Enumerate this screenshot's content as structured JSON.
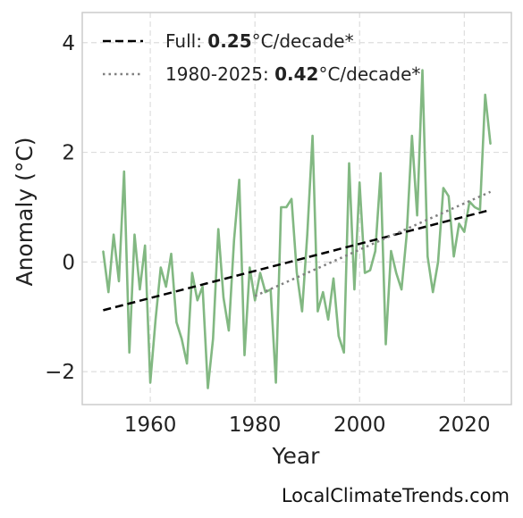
{
  "chart_data": {
    "type": "line",
    "xlabel": "Year",
    "ylabel": "Anomaly (°C)",
    "xlim": [
      1947,
      2029
    ],
    "ylim": [
      -2.6,
      4.55
    ],
    "xticks": [
      1960,
      1980,
      2000,
      2020
    ],
    "yticks": [
      -2,
      0,
      2,
      4
    ],
    "ytick_labels": [
      "−2",
      "0",
      "2",
      "4"
    ],
    "grid": true,
    "legend_position": "top-left",
    "colors": {
      "series": "#82b882",
      "full_trend": "#000000",
      "recent_trend": "#808080"
    },
    "series": [
      {
        "x": [
          1951,
          1952,
          1953,
          1954,
          1955,
          1956,
          1957,
          1958,
          1959,
          1960,
          1961,
          1962,
          1963,
          1964,
          1965,
          1966,
          1967,
          1968,
          1969,
          1970,
          1971,
          1972,
          1973,
          1974,
          1975,
          1976,
          1977,
          1978,
          1979,
          1980,
          1981,
          1982,
          1983,
          1984,
          1985,
          1986,
          1987,
          1988,
          1989,
          1990,
          1991,
          1992,
          1993,
          1994,
          1995,
          1996,
          1997,
          1998,
          1999,
          2000,
          2001,
          2002,
          2003,
          2004,
          2005,
          2006,
          2007,
          2008,
          2009,
          2010,
          2011,
          2012,
          2013,
          2014,
          2015,
          2016,
          2017,
          2018,
          2019,
          2020,
          2021,
          2022,
          2023,
          2024,
          2025
        ],
        "y": [
          0.2,
          -0.55,
          0.5,
          -0.35,
          1.65,
          -1.65,
          0.5,
          -0.5,
          0.3,
          -2.2,
          -1.05,
          -0.1,
          -0.45,
          0.15,
          -1.1,
          -1.4,
          -1.85,
          -0.2,
          -0.7,
          -0.45,
          -2.3,
          -1.4,
          0.6,
          -0.65,
          -1.25,
          0.4,
          1.5,
          -1.7,
          -0.1,
          -0.7,
          -0.2,
          -0.55,
          -0.5,
          -2.2,
          1.0,
          1.0,
          1.15,
          -0.2,
          -0.9,
          0.5,
          2.3,
          -0.9,
          -0.55,
          -1.05,
          -0.3,
          -1.35,
          -1.65,
          1.8,
          -0.5,
          1.45,
          -0.2,
          -0.15,
          0.2,
          1.62,
          -1.5,
          0.2,
          -0.2,
          -0.5,
          0.5,
          2.3,
          0.85,
          3.5,
          0.1,
          -0.55,
          0.0,
          1.35,
          1.2,
          0.1,
          0.7,
          0.55,
          1.1,
          1.0,
          0.95,
          3.05,
          2.15
        ]
      }
    ],
    "trends": [
      {
        "label": "Full: ",
        "value": "0.25",
        "unit": "°C/decade*",
        "x": [
          1951,
          2025
        ],
        "y": [
          -0.88,
          0.95
        ]
      },
      {
        "label": "1980-2025: ",
        "value": "0.42",
        "unit": "°C/decade*",
        "x": [
          1980,
          2025
        ],
        "y": [
          -0.62,
          1.28
        ]
      }
    ]
  },
  "watermark": "LocalClimateTrends.com"
}
